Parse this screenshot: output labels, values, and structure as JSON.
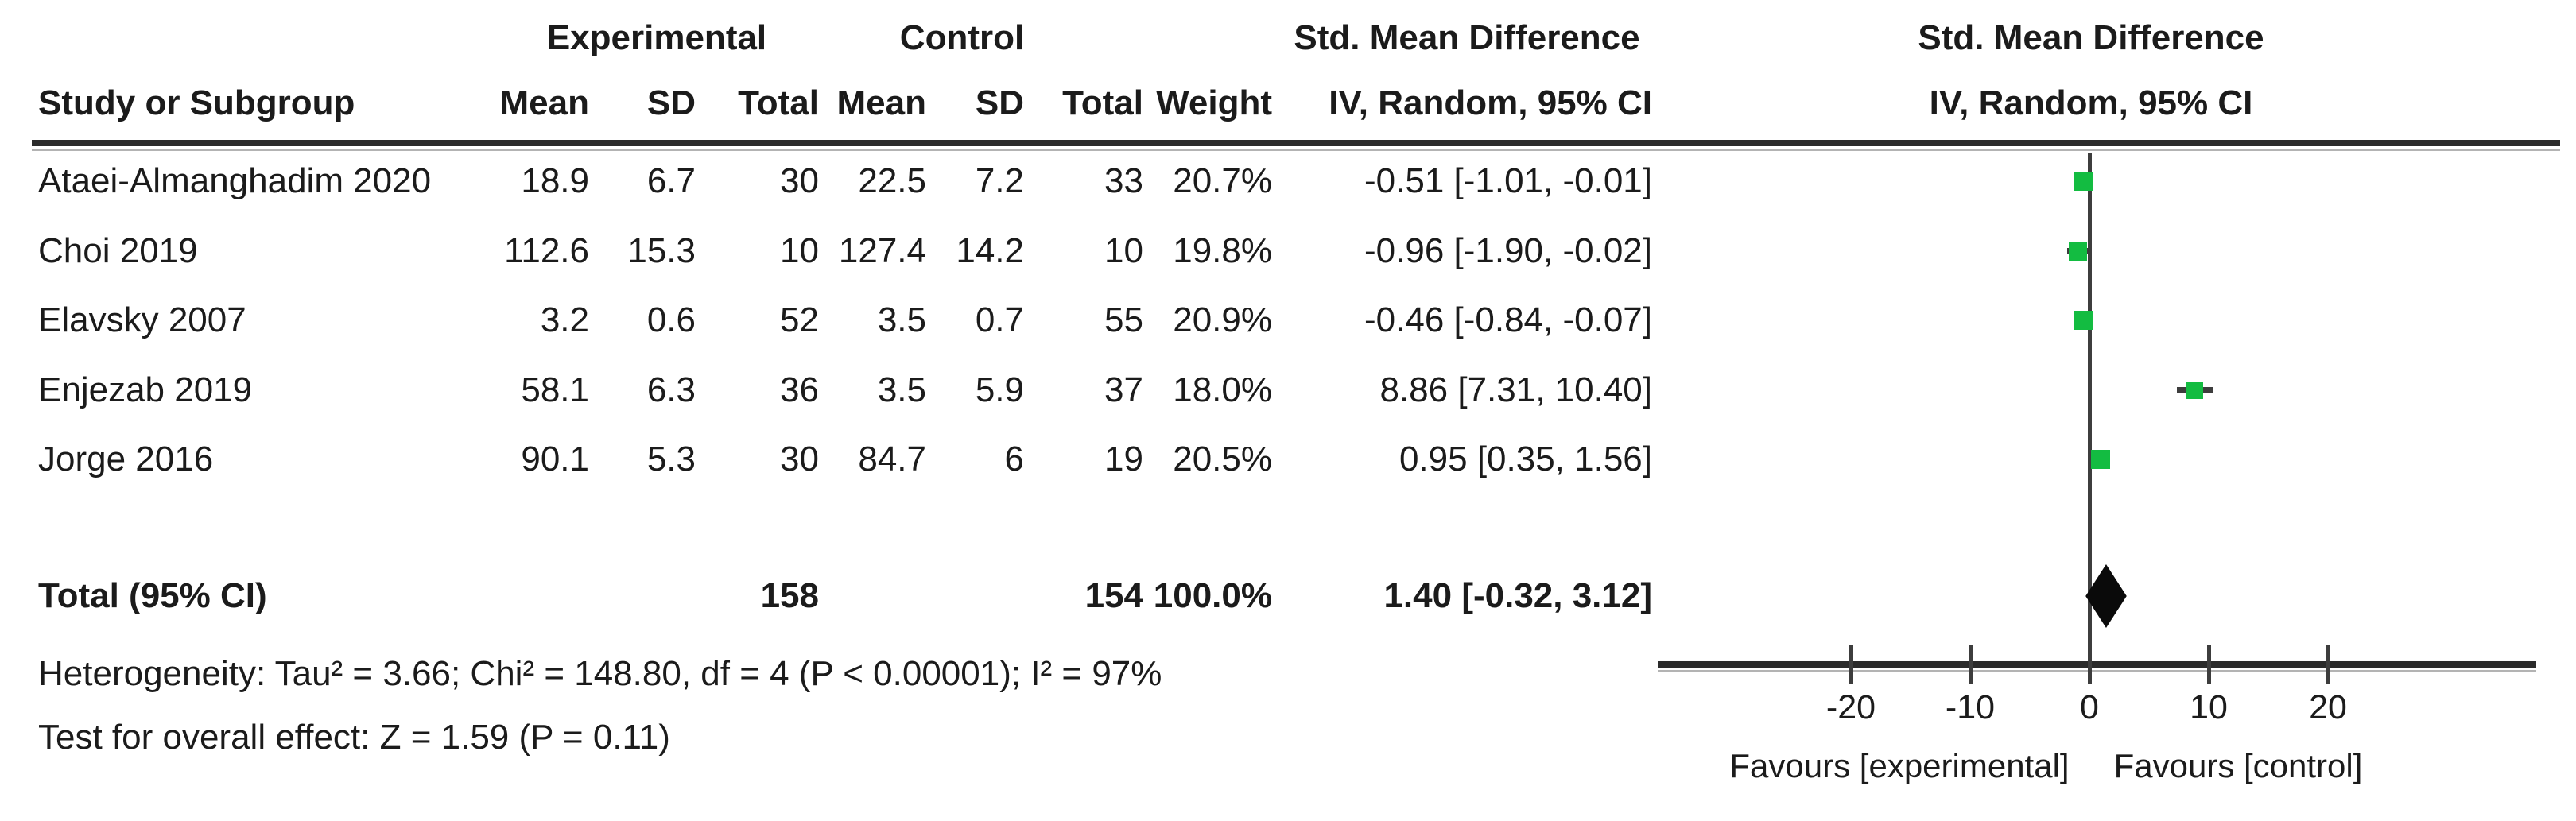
{
  "table": {
    "group_headers": {
      "experimental": "Experimental",
      "control": "Control",
      "effect": "Std. Mean Difference"
    },
    "subheaders": {
      "study": "Study or Subgroup",
      "mean": "Mean",
      "sd": "SD",
      "total": "Total",
      "weight": "Weight",
      "effect_method": "IV, Random, 95% CI"
    },
    "plot_header": {
      "line1": "Std. Mean Difference",
      "line2": "IV, Random, 95% CI"
    },
    "rows": [
      [
        "Ataei-Almanghadim 2020",
        "18.9",
        "6.7",
        "30",
        "22.5",
        "7.2",
        "33",
        "20.7%",
        "-0.51 [-1.01, -0.01]"
      ],
      [
        "Choi 2019",
        "112.6",
        "15.3",
        "10",
        "127.4",
        "14.2",
        "10",
        "19.8%",
        "-0.96 [-1.90, -0.02]"
      ],
      [
        "Elavsky 2007",
        "3.2",
        "0.6",
        "52",
        "3.5",
        "0.7",
        "55",
        "20.9%",
        "-0.46 [-0.84, -0.07]"
      ],
      [
        "Enjezab 2019",
        "58.1",
        "6.3",
        "36",
        "3.5",
        "5.9",
        "37",
        "18.0%",
        "8.86 [7.31, 10.40]"
      ],
      [
        "Jorge 2016",
        "90.1",
        "5.3",
        "30",
        "84.7",
        "6",
        "19",
        "20.5%",
        "0.95 [0.35, 1.56]"
      ]
    ],
    "total_row": {
      "label": "Total (95% CI)",
      "exp_total": "158",
      "ctl_total": "154",
      "weight": "100.0%",
      "ci_text": "1.40 [-0.32, 3.12]"
    },
    "footnotes": {
      "heterogeneity": "Heterogeneity: Tau² = 3.66; Chi² = 148.80, df = 4 (P < 0.00001); I² = 97%",
      "overall_effect": "Test for overall effect: Z = 1.59 (P = 0.11)"
    }
  },
  "plot": {
    "axis_ticks": [
      "-20",
      "-10",
      "0",
      "10",
      "20"
    ],
    "favours_left": "Favours [experimental]",
    "favours_right": "Favours [control]"
  },
  "colors": {
    "square_green": "#13BC41",
    "diamond_black": "#0a0a0a",
    "line_dark": "#3d3d3d"
  },
  "chart_data": {
    "type": "forest",
    "title": "Std. Mean Difference",
    "method": "IV, Random, 95% CI",
    "x_ticks": [
      -20,
      -10,
      0,
      10,
      20
    ],
    "x_axis_range": [
      -36,
      37
    ],
    "favours": [
      "Favours [experimental]",
      "Favours [control]"
    ],
    "studies": [
      {
        "name": "Ataei-Almanghadim 2020",
        "exp_mean": 18.9,
        "exp_sd": 6.7,
        "exp_total": 30,
        "ctl_mean": 22.5,
        "ctl_sd": 7.2,
        "ctl_total": 33,
        "weight_pct": 20.7,
        "smd": -0.51,
        "ci_low": -1.01,
        "ci_high": -0.01
      },
      {
        "name": "Choi 2019",
        "exp_mean": 112.6,
        "exp_sd": 15.3,
        "exp_total": 10,
        "ctl_mean": 127.4,
        "ctl_sd": 14.2,
        "ctl_total": 10,
        "weight_pct": 19.8,
        "smd": -0.96,
        "ci_low": -1.9,
        "ci_high": -0.02
      },
      {
        "name": "Elavsky 2007",
        "exp_mean": 3.2,
        "exp_sd": 0.6,
        "exp_total": 52,
        "ctl_mean": 3.5,
        "ctl_sd": 0.7,
        "ctl_total": 55,
        "weight_pct": 20.9,
        "smd": -0.46,
        "ci_low": -0.84,
        "ci_high": -0.07
      },
      {
        "name": "Enjezab 2019",
        "exp_mean": 58.1,
        "exp_sd": 6.3,
        "exp_total": 36,
        "ctl_mean": 3.5,
        "ctl_sd": 5.9,
        "ctl_total": 37,
        "weight_pct": 18.0,
        "smd": 8.86,
        "ci_low": 7.31,
        "ci_high": 10.4
      },
      {
        "name": "Jorge 2016",
        "exp_mean": 90.1,
        "exp_sd": 5.3,
        "exp_total": 30,
        "ctl_mean": 84.7,
        "ctl_sd": 6,
        "ctl_total": 19,
        "weight_pct": 20.5,
        "smd": 0.95,
        "ci_low": 0.35,
        "ci_high": 1.56
      }
    ],
    "total": {
      "label": "Total (95% CI)",
      "exp_total": 158,
      "ctl_total": 154,
      "weight_pct": 100.0,
      "smd": 1.4,
      "ci_low": -0.32,
      "ci_high": 3.12
    },
    "heterogeneity": "Tau² = 3.66; Chi² = 148.80, df = 4 (P < 0.00001); I² = 97%",
    "overall_effect_test": "Z = 1.59 (P = 0.11)"
  }
}
